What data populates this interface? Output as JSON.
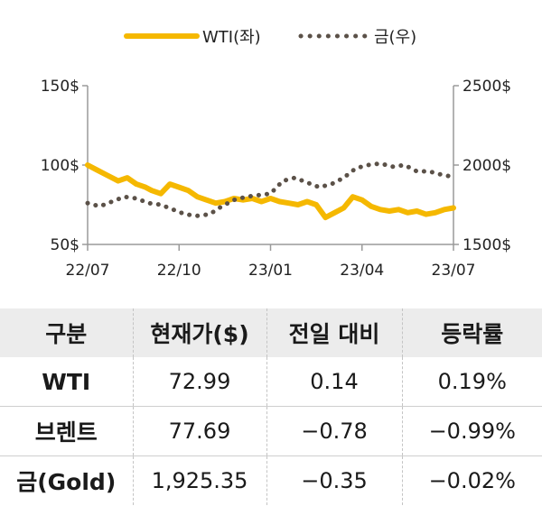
{
  "chart_data": {
    "type": "line",
    "x_ticks": [
      "22/07",
      "22/10",
      "23/01",
      "23/04",
      "23/07"
    ],
    "y_left_ticks": [
      "150$",
      "100$",
      "50$"
    ],
    "y_right_ticks": [
      "2500$",
      "2000$",
      "1500$"
    ],
    "y_left_range": [
      50,
      150
    ],
    "y_right_range": [
      1500,
      2500
    ],
    "x_range_months": [
      0,
      12
    ],
    "legend_position": "top-center",
    "series": [
      {
        "name": "WTI(좌)",
        "axis": "left",
        "style": "solid",
        "color": "#F5B800",
        "x": [
          0,
          0.3,
          0.6,
          1,
          1.3,
          1.6,
          1.9,
          2.1,
          2.4,
          2.7,
          3,
          3.3,
          3.6,
          3.9,
          4.2,
          4.5,
          4.8,
          5.1,
          5.4,
          5.7,
          6,
          6.3,
          6.6,
          6.9,
          7.2,
          7.5,
          7.8,
          8.1,
          8.4,
          8.7,
          9,
          9.3,
          9.6,
          9.9,
          10.2,
          10.5,
          10.8,
          11.1,
          11.4,
          11.7,
          12
        ],
        "y": [
          100,
          97,
          94,
          90,
          92,
          88,
          86,
          84,
          82,
          88,
          86,
          84,
          80,
          78,
          76,
          77,
          79,
          78,
          79,
          77,
          79,
          77,
          76,
          75,
          77,
          75,
          67,
          70,
          73,
          80,
          78,
          74,
          72,
          71,
          72,
          70,
          71,
          69,
          70,
          72,
          73
        ]
      },
      {
        "name": "금(우)",
        "axis": "right",
        "style": "dotted",
        "color": "#5b5148",
        "x": [
          0,
          0.4,
          0.8,
          1.2,
          1.6,
          2,
          2.4,
          2.8,
          3.2,
          3.6,
          4,
          4.4,
          4.8,
          5.2,
          5.6,
          6,
          6.4,
          6.8,
          7.2,
          7.6,
          8,
          8.4,
          8.8,
          9.2,
          9.6,
          10,
          10.4,
          10.8,
          11.2,
          11.6,
          12
        ],
        "y": [
          1760,
          1740,
          1770,
          1800,
          1790,
          1760,
          1750,
          1720,
          1690,
          1680,
          1690,
          1740,
          1780,
          1800,
          1810,
          1820,
          1900,
          1920,
          1890,
          1860,
          1880,
          1920,
          1980,
          2000,
          2010,
          1990,
          2000,
          1960,
          1960,
          1940,
          1925
        ]
      }
    ]
  },
  "table": {
    "headers": [
      "구분",
      "현재가($)",
      "전일 대비",
      "등락률"
    ],
    "rows": [
      [
        "WTI",
        "72.99",
        "0.14",
        "0.19%"
      ],
      [
        "브렌트",
        "77.69",
        "−0.78",
        "−0.99%"
      ],
      [
        "금(Gold)",
        "1,925.35",
        "−0.35",
        "−0.02%"
      ]
    ]
  }
}
